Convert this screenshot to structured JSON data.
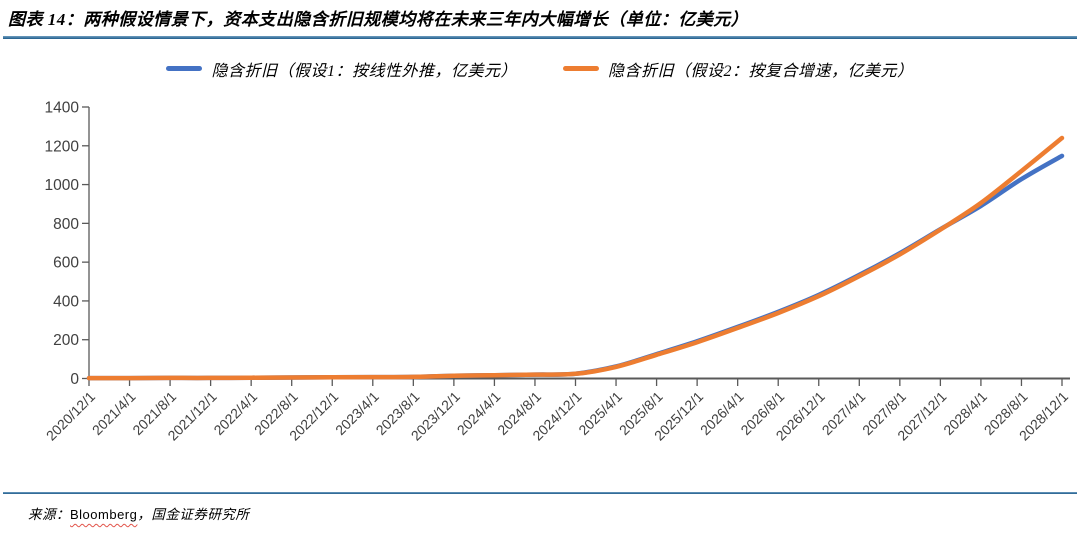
{
  "figure": {
    "title": "图表 14：两种假设情景下，资本支出隐含折旧规模均将在未来三年内大幅增长（单位：亿美元）",
    "source": {
      "prefix": "来源：",
      "vendor": "Bloomberg",
      "suffix": "，国金证券研究所"
    }
  },
  "colors": {
    "rule_blue": "#1f5c8b",
    "axis_line": "#595959",
    "tick_label": "#404040",
    "series_blue": "#4472C4",
    "series_orange": "#ED7D31",
    "spellcheck_red": "#e2544a"
  },
  "chart_data": {
    "type": "line",
    "title": "",
    "xlabel": "",
    "ylabel": "",
    "ylim": [
      0,
      1400
    ],
    "ytick_step": 200,
    "grid": false,
    "legend_position": "top",
    "categories": [
      "2020/12/1",
      "2021/4/1",
      "2021/8/1",
      "2021/12/1",
      "2022/4/1",
      "2022/8/1",
      "2022/12/1",
      "2023/4/1",
      "2023/8/1",
      "2023/12/1",
      "2024/4/1",
      "2024/8/1",
      "2024/12/1",
      "2025/4/1",
      "2025/8/1",
      "2025/12/1",
      "2026/4/1",
      "2026/8/1",
      "2026/12/1",
      "2027/4/1",
      "2027/8/1",
      "2027/12/1",
      "2028/4/1",
      "2028/8/1",
      "2028/12/1"
    ],
    "series": [
      {
        "name": "隐含折旧（假设1：按线性外推，亿美元）",
        "color": "#4472C4",
        "values": [
          2,
          2,
          3,
          3,
          4,
          5,
          6,
          7,
          8,
          14,
          17,
          20,
          25,
          62,
          126,
          192,
          266,
          344,
          431,
          534,
          646,
          770,
          890,
          1028,
          1148
        ]
      },
      {
        "name": "隐含折旧（假设2：按复合增速，亿美元）",
        "color": "#ED7D31",
        "values": [
          2,
          2,
          3,
          3,
          4,
          5,
          6,
          7,
          8,
          14,
          17,
          20,
          24,
          60,
          122,
          187,
          261,
          338,
          425,
          528,
          640,
          768,
          905,
          1070,
          1240
        ]
      }
    ]
  }
}
